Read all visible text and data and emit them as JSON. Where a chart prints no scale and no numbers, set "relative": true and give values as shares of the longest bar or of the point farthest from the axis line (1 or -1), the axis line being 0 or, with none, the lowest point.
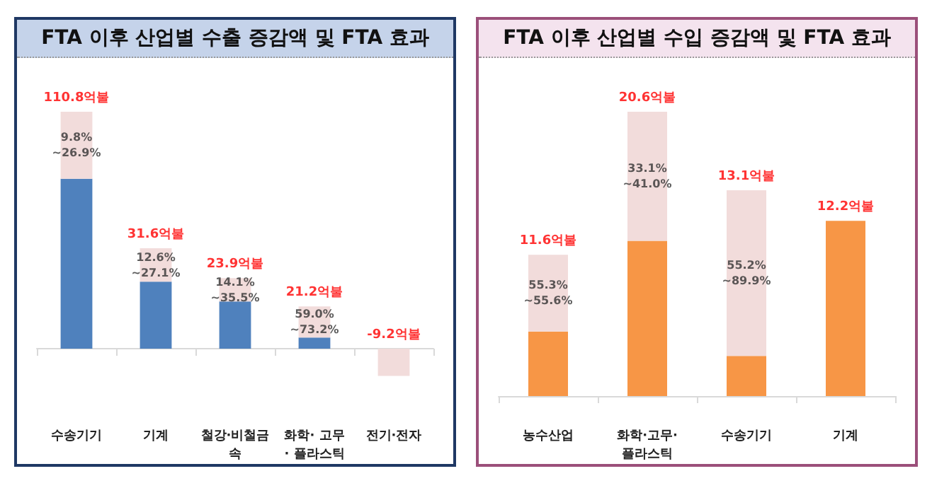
{
  "chart_data": [
    {
      "type": "bar",
      "title": "FTA 이후 산업별 수출 증감액 및 FTA 효과",
      "relative": true,
      "stacked": true,
      "categories": [
        "수송기기",
        "기계",
        "철강·비철금속",
        "화학· 고무· 플라스틱",
        "전기·전자"
      ],
      "series": [
        {
          "color": "#4f81bd",
          "values": [
            0.717,
            0.283,
            0.199,
            0.047,
            0
          ]
        },
        {
          "color": "#f2dcdb",
          "values": [
            0.283,
            0.141,
            0.099,
            0.131,
            -0.115
          ]
        }
      ],
      "annotations": [
        "110.8억불",
        "9.8%\n~26.9%",
        "31.6억불",
        "12.6%\n~27.1%",
        "23.9억불",
        "14.1%\n~35.5%",
        "21.2억불",
        "59.0%\n~73.2%",
        "-9.2억불"
      ]
    },
    {
      "type": "bar",
      "title": "FTA 이후 산업별 수입 증감액 및 FTA 효과",
      "relative": true,
      "stacked": true,
      "categories": [
        "농수산업",
        "화학·고무·플라스틱",
        "수송기기",
        "기계"
      ],
      "series": [
        {
          "color": "#f79646",
          "values": [
            0.227,
            0.546,
            0.141,
            0.616
          ]
        },
        {
          "color": "#f2dcdb",
          "values": [
            0.27,
            0.454,
            0.583,
            0
          ]
        }
      ],
      "annotations": [
        "11.6억불",
        "55.3%\n~55.6%",
        "20.6억불",
        "33.1%\n~41.0%",
        "13.1억불",
        "55.2%\n~89.9%",
        "12.2억불"
      ]
    }
  ]
}
